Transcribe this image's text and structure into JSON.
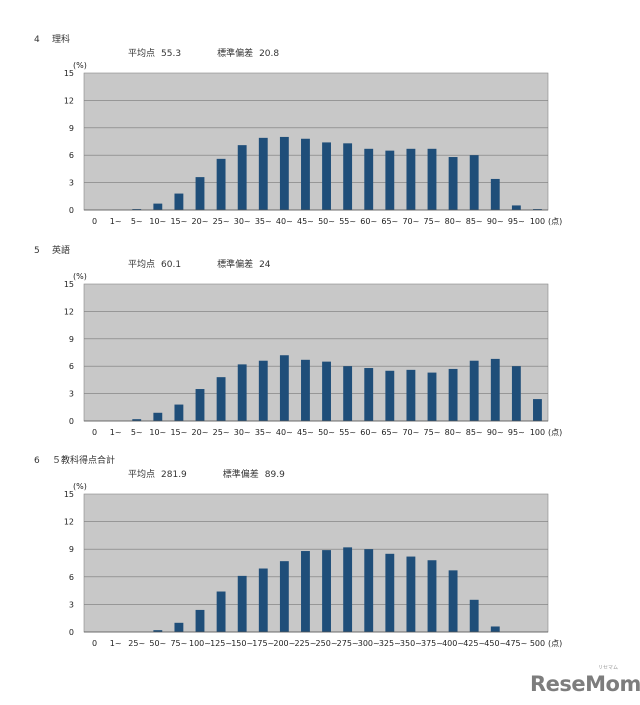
{
  "chart_data": [
    {
      "type": "bar",
      "section_number": "4",
      "title": "理科",
      "mean_label": "平均点",
      "mean_value": "55.3",
      "sd_label": "標準偏差",
      "sd_value": "20.8",
      "ylabel": "(%)",
      "xlabel": "(点)",
      "ylim": [
        0,
        15
      ],
      "yticks": [
        "0",
        "3",
        "6",
        "9",
        "12",
        "15"
      ],
      "categories": [
        "0",
        "1~",
        "5~",
        "10~",
        "15~",
        "20~",
        "25~",
        "30~",
        "35~",
        "40~",
        "45~",
        "50~",
        "55~",
        "60~",
        "65~",
        "70~",
        "75~",
        "80~",
        "85~",
        "90~",
        "95~",
        "100"
      ],
      "values": [
        0,
        0,
        0.1,
        0.7,
        1.8,
        3.6,
        5.6,
        7.1,
        7.9,
        8.0,
        7.8,
        7.4,
        7.3,
        6.7,
        6.5,
        6.7,
        6.7,
        5.8,
        6.0,
        3.4,
        0.5,
        0.1
      ],
      "bar_color": "#1f4e79",
      "plot_bg": "#c8c8c8",
      "grid": true
    },
    {
      "type": "bar",
      "section_number": "5",
      "title": "英語",
      "mean_label": "平均点",
      "mean_value": "60.1",
      "sd_label": "標準偏差",
      "sd_value": "24",
      "ylabel": "(%)",
      "xlabel": "(点)",
      "ylim": [
        0,
        15
      ],
      "yticks": [
        "0",
        "3",
        "6",
        "9",
        "12",
        "15"
      ],
      "categories": [
        "0",
        "1~",
        "5~",
        "10~",
        "15~",
        "20~",
        "25~",
        "30~",
        "35~",
        "40~",
        "45~",
        "50~",
        "55~",
        "60~",
        "65~",
        "70~",
        "75~",
        "80~",
        "85~",
        "90~",
        "95~",
        "100"
      ],
      "values": [
        0,
        0,
        0.2,
        0.9,
        1.8,
        3.5,
        4.8,
        6.2,
        6.6,
        7.2,
        6.7,
        6.5,
        6.0,
        5.8,
        5.5,
        5.6,
        5.3,
        5.7,
        6.6,
        6.8,
        6.0,
        2.4
      ],
      "bar_color": "#1f4e79",
      "plot_bg": "#c8c8c8",
      "grid": true
    },
    {
      "type": "bar",
      "section_number": "6",
      "title": "５教科得点合計",
      "mean_label": "平均点",
      "mean_value": "281.9",
      "sd_label": "標準偏差",
      "sd_value": "89.9",
      "ylabel": "(%)",
      "xlabel": "(点)",
      "ylim": [
        0,
        15
      ],
      "yticks": [
        "0",
        "3",
        "6",
        "9",
        "12",
        "15"
      ],
      "categories": [
        "0",
        "1~",
        "25~",
        "50~",
        "75~",
        "100~",
        "125~",
        "150~",
        "175~",
        "200~",
        "225~",
        "250~",
        "275~",
        "300~",
        "325~",
        "350~",
        "375~",
        "400~",
        "425~",
        "450~",
        "475~",
        "500"
      ],
      "values": [
        0,
        0,
        0,
        0.2,
        1.0,
        2.4,
        4.4,
        6.1,
        6.9,
        7.7,
        8.8,
        8.9,
        9.2,
        9.0,
        8.5,
        8.2,
        7.8,
        6.7,
        3.5,
        0.6,
        0,
        0
      ],
      "bar_color": "#1f4e79",
      "plot_bg": "#c8c8c8",
      "grid": true
    }
  ],
  "watermark": {
    "logo_text": "ReseMom",
    "logo_ruby": "リセマム"
  }
}
